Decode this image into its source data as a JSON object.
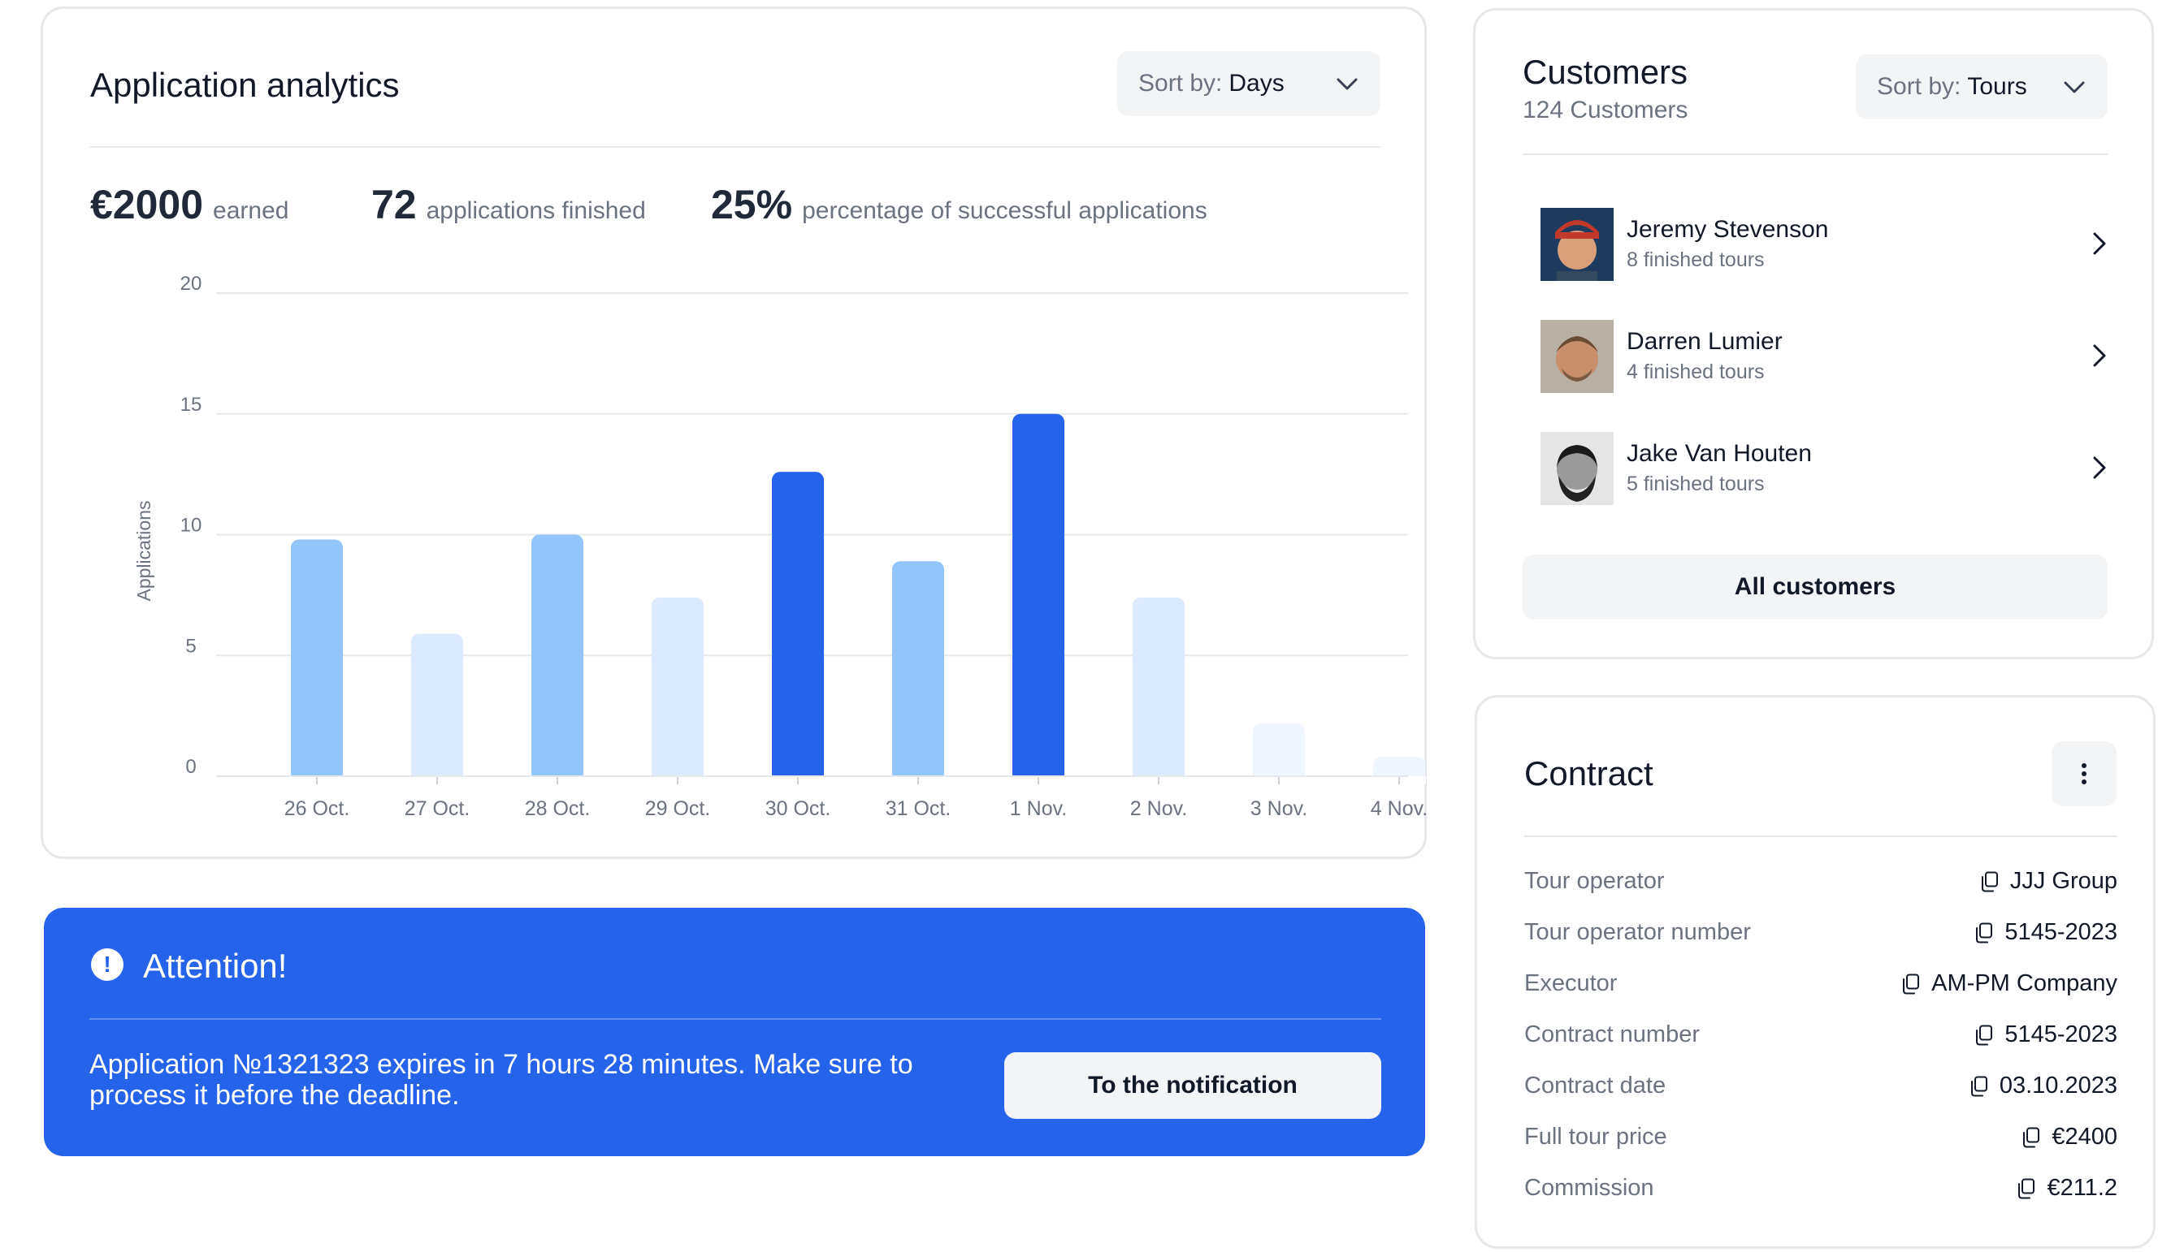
{
  "analytics": {
    "title": "Application analytics",
    "sort_prefix": "Sort by:",
    "sort_value": "Days",
    "stats": [
      {
        "value": "€2000",
        "label": "earned"
      },
      {
        "value": "72",
        "label": "applications finished"
      },
      {
        "value": "25%",
        "label": "percentage of successful applications"
      }
    ]
  },
  "chart_data": {
    "type": "bar",
    "categories": [
      "26 Oct.",
      "27 Oct.",
      "28 Oct.",
      "29 Oct.",
      "30 Oct.",
      "31 Oct.",
      "1 Nov.",
      "2 Nov.",
      "3 Nov.",
      "4 Nov."
    ],
    "values": [
      9.8,
      5.9,
      10,
      7.4,
      12.6,
      8.9,
      15,
      7.4,
      2.2,
      0.8
    ],
    "bar_colors": [
      "#93c5fd",
      "#dbeafe",
      "#93c5fd",
      "#dbeafe",
      "#2563eb",
      "#93c5fd",
      "#2563eb",
      "#dbeafe",
      "#eff6ff",
      "#eff6ff"
    ],
    "ylabel": "Applications",
    "xlabel": "",
    "ylim": [
      0,
      20
    ],
    "yticks": [
      0,
      5,
      10,
      15,
      20
    ],
    "grid": true
  },
  "attention": {
    "title": "Attention!",
    "icon": "exclamation-circle-icon",
    "message": "Application №1321323 expires in 7 hours 28 minutes. Make sure to process it before the deadline.",
    "button_label": "To the notification"
  },
  "customers": {
    "title": "Customers",
    "count_label": "124 Customers",
    "sort_prefix": "Sort by:",
    "sort_value": "Tours",
    "items": [
      {
        "name": "Jeremy Stevenson",
        "tours": "8 finished tours"
      },
      {
        "name": "Darren Lumier",
        "tours": "4 finished tours"
      },
      {
        "name": "Jake Van Houten",
        "tours": "5 finished tours"
      }
    ],
    "all_button": "All customers"
  },
  "contract": {
    "title": "Contract",
    "rows": [
      {
        "label": "Tour operator",
        "value": "JJJ Group"
      },
      {
        "label": "Tour operator number",
        "value": "5145-2023"
      },
      {
        "label": "Executor",
        "value": "AM-PM Company"
      },
      {
        "label": "Contract number",
        "value": "5145-2023"
      },
      {
        "label": "Contract date",
        "value": "03.10.2023"
      },
      {
        "label": "Full tour price",
        "value": "€2400"
      },
      {
        "label": "Commission",
        "value": "€211.2"
      }
    ]
  },
  "colors": {
    "accent": "#2563eb",
    "bar_light": "#93c5fd",
    "bar_pale": "#dbeafe",
    "muted_text": "#6b7280"
  }
}
